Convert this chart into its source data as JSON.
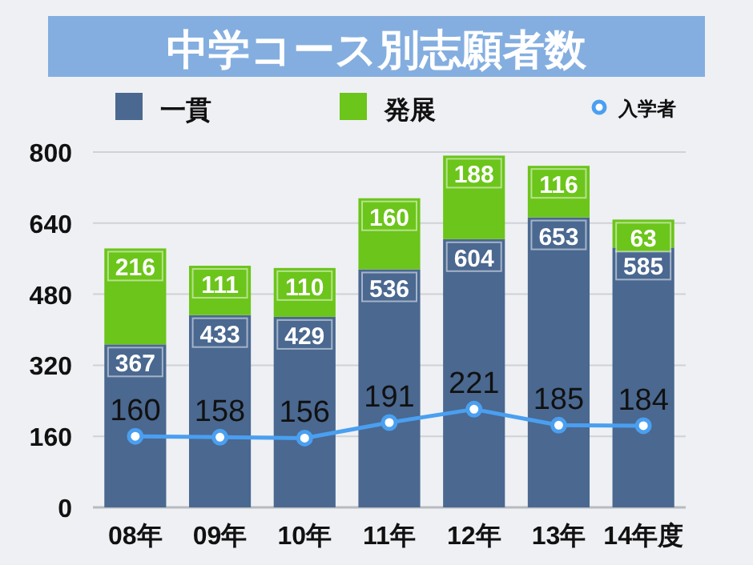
{
  "chart_data": {
    "type": "bar",
    "title": "中学コース別志願者数",
    "categories": [
      "08年",
      "09年",
      "10年",
      "11年",
      "12年",
      "13年",
      "14年度"
    ],
    "series": [
      {
        "name": "一貫",
        "color": "#4a6890",
        "values": [
          367,
          433,
          429,
          536,
          604,
          653,
          585
        ]
      },
      {
        "name": "発展",
        "color": "#6cc51a",
        "values": [
          216,
          111,
          110,
          160,
          188,
          116,
          63
        ]
      },
      {
        "name": "入学者",
        "type": "line",
        "color": "#4a9ff0",
        "marker": "circle",
        "values": [
          160,
          158,
          156,
          191,
          221,
          185,
          184
        ]
      }
    ],
    "stacked": true,
    "ylim": [
      0,
      800
    ],
    "yticks": [
      0,
      160,
      320,
      480,
      640,
      800
    ],
    "grid": "y",
    "legend": "top",
    "data_labels": true
  }
}
